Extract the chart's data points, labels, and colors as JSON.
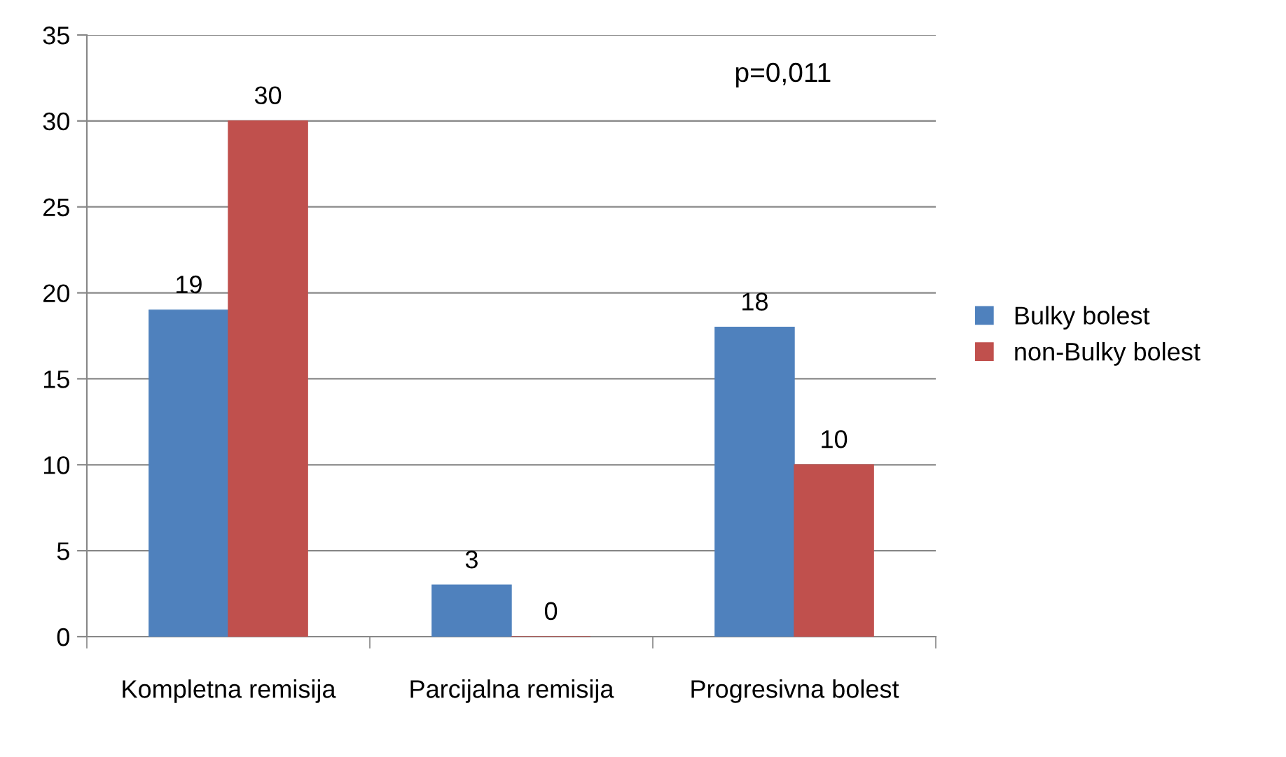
{
  "chart_data": {
    "type": "bar",
    "categories": [
      "Kompletna remisija",
      "Parcijalna remisija",
      "Progresivna bolest"
    ],
    "series": [
      {
        "name": "Bulky bolest",
        "color": "#4f81bd",
        "values": [
          19,
          3,
          18
        ]
      },
      {
        "name": "non-Bulky bolest",
        "color": "#c0504d",
        "values": [
          30,
          0,
          10
        ]
      }
    ],
    "ylim": [
      0,
      35
    ],
    "yticks": [
      0,
      5,
      10,
      15,
      20,
      25,
      30,
      35
    ],
    "grid": "y",
    "legend": "right",
    "data_labels": true,
    "annotations": [
      "p=0,011"
    ]
  }
}
